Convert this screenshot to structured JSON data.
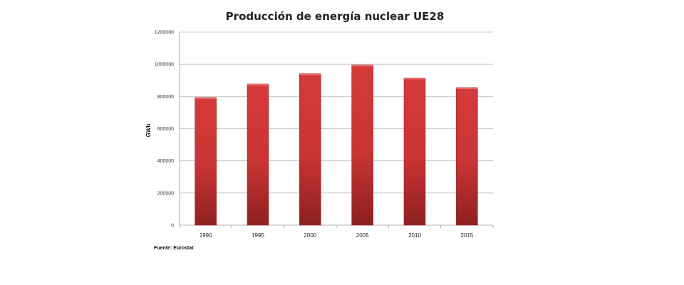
{
  "chart_data": {
    "type": "bar",
    "title": "Producción de energía nuclear UE28",
    "ylabel": "GWh",
    "xlabel": "",
    "categories": [
      "1990",
      "1995",
      "2000",
      "2005",
      "2010",
      "2015"
    ],
    "values": [
      794000,
      877000,
      942000,
      996000,
      915000,
      855000
    ],
    "ylim": [
      0,
      1200000
    ],
    "yticks": [
      "0",
      "200000",
      "400000",
      "600000",
      "800000",
      "1000000",
      "1200000"
    ],
    "grid": true,
    "legend": "none",
    "bar_color": "#d63a3a",
    "bar_color_dark": "#8e2020",
    "source": "Fuente: Eurostat"
  }
}
